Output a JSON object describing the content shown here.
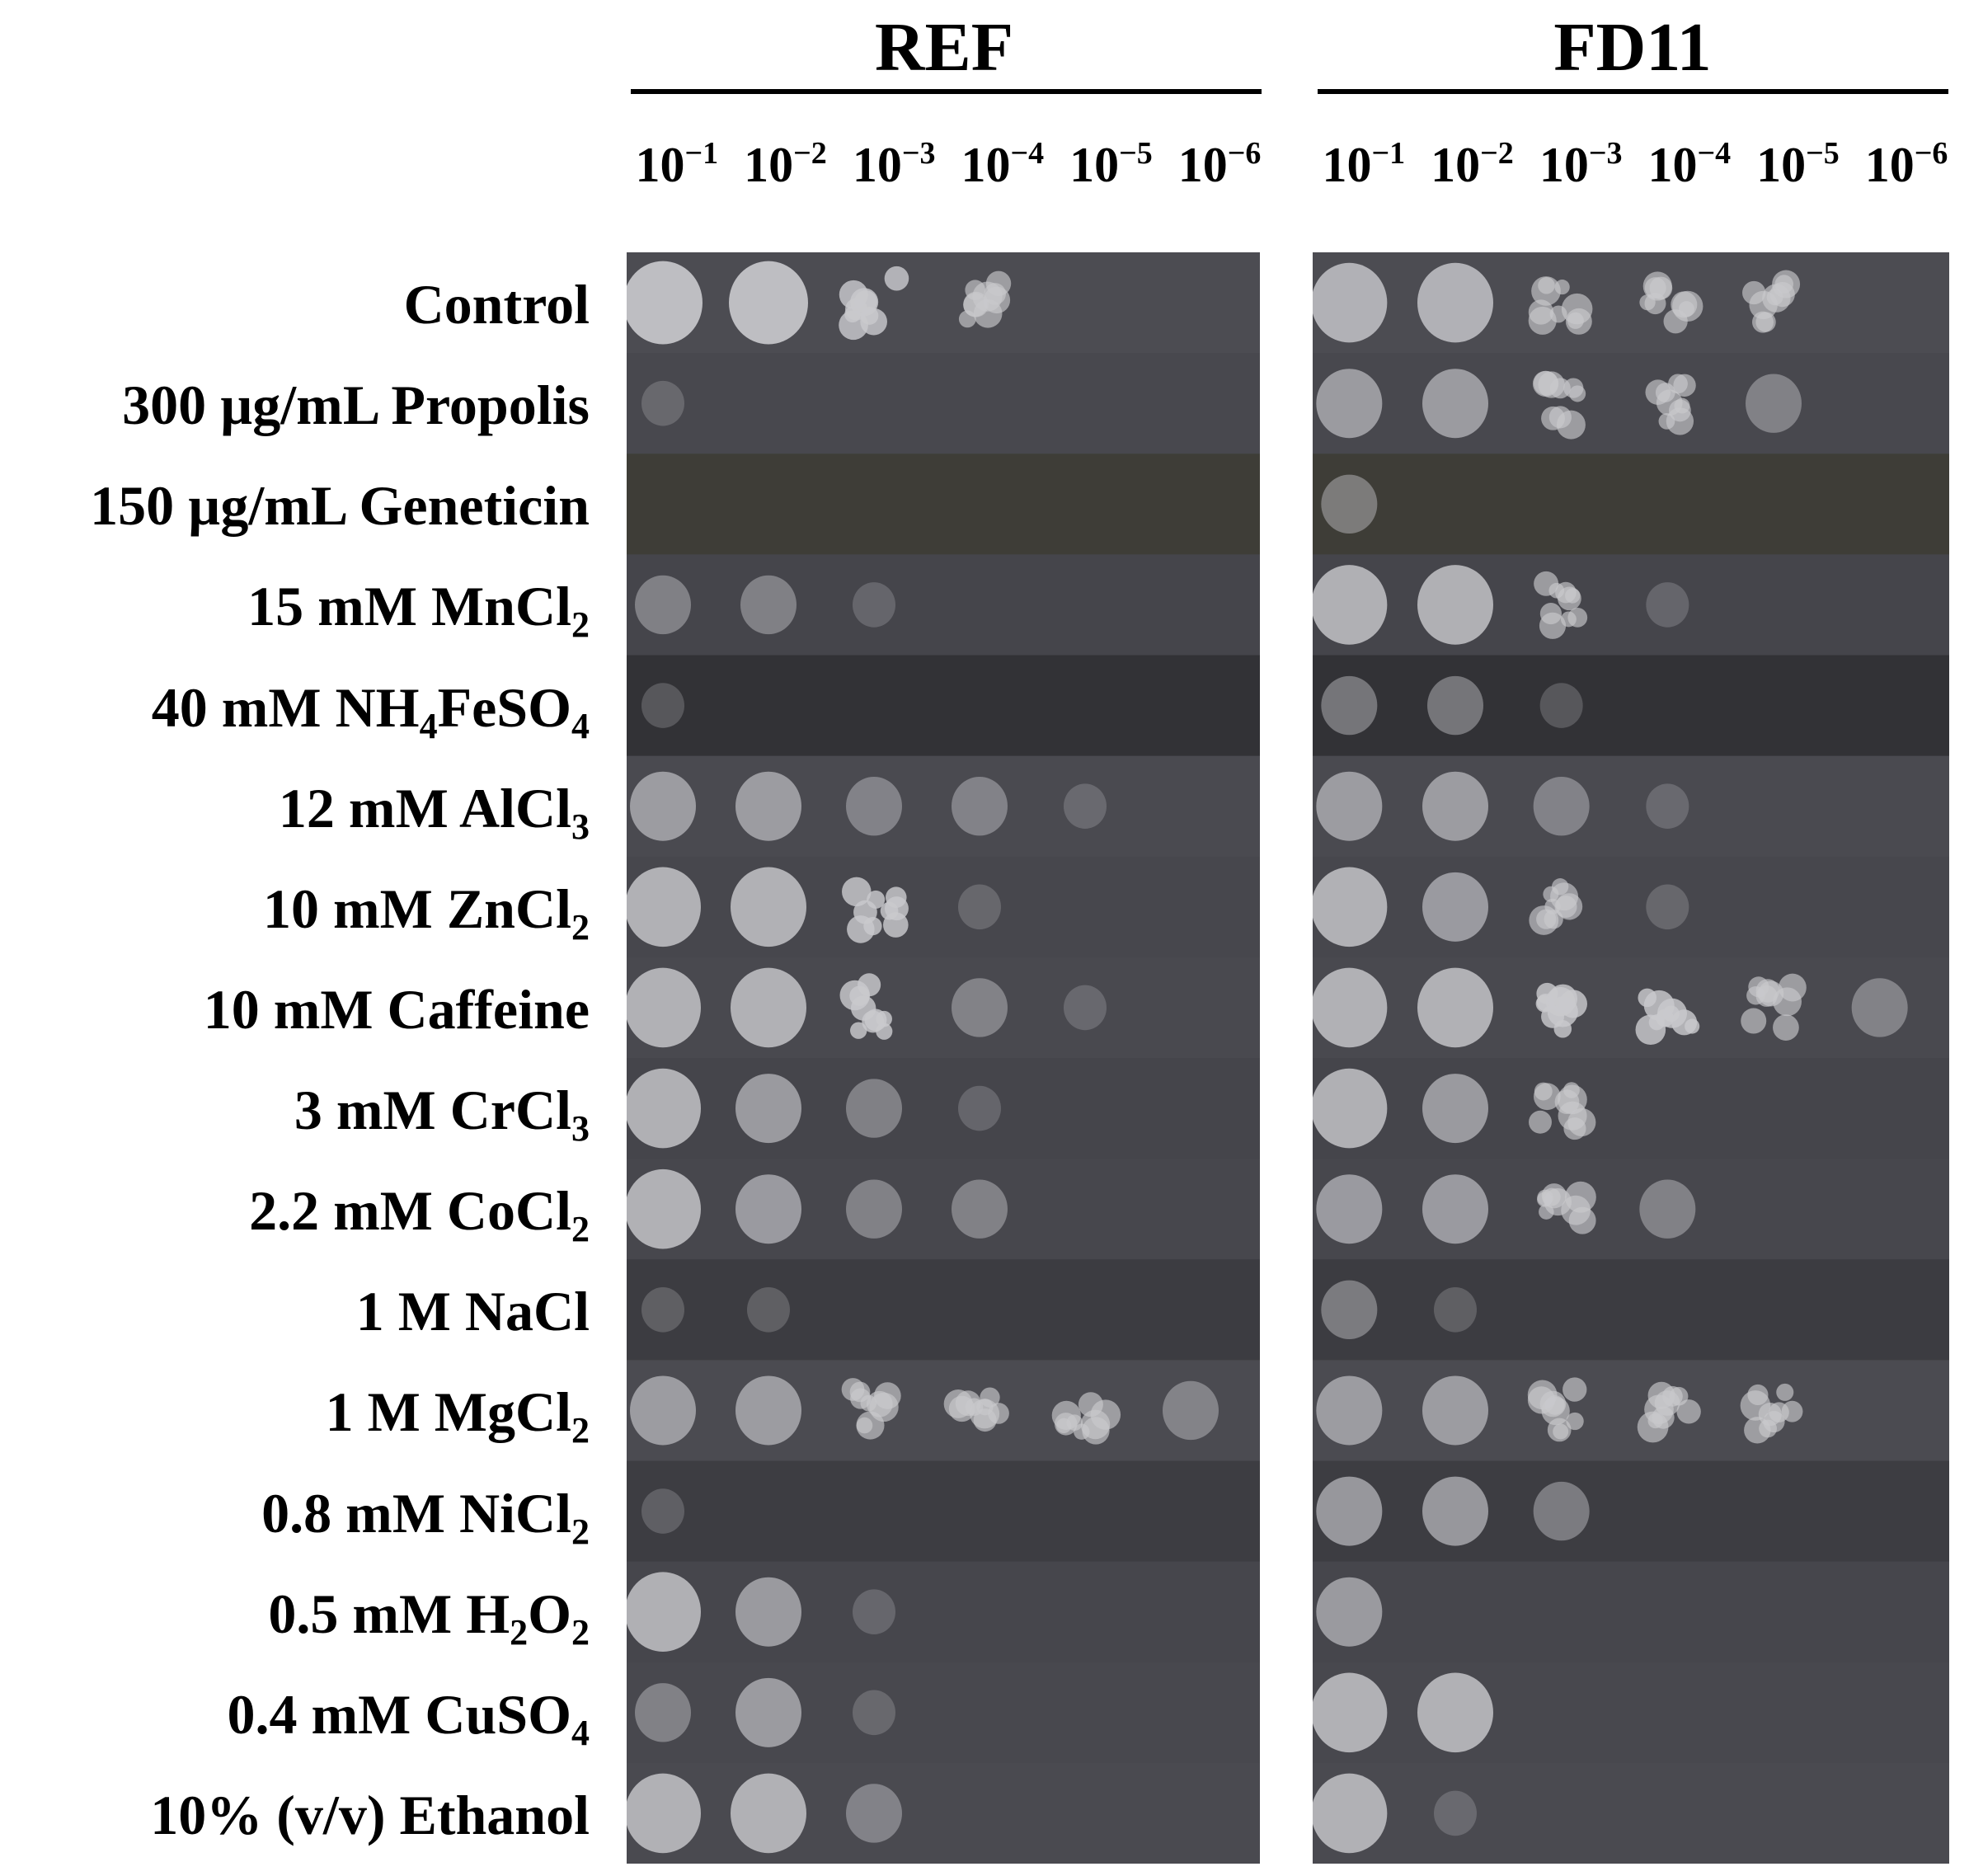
{
  "strains": [
    {
      "id": "ref",
      "name": "REF"
    },
    {
      "id": "fd11",
      "name": "FD11"
    }
  ],
  "dilutions": [
    {
      "base": "10",
      "exp": "−1"
    },
    {
      "base": "10",
      "exp": "−2"
    },
    {
      "base": "10",
      "exp": "−3"
    },
    {
      "base": "10",
      "exp": "−4"
    },
    {
      "base": "10",
      "exp": "−5"
    },
    {
      "base": "10",
      "exp": "−6"
    }
  ],
  "conditions": [
    {
      "pre": "Control",
      "sub": "",
      "post": "",
      "sub2": ""
    },
    {
      "pre": "300 µg/mL Propolis",
      "sub": "",
      "post": "",
      "sub2": ""
    },
    {
      "pre": "150 µg/mL Geneticin",
      "sub": "",
      "post": "",
      "sub2": ""
    },
    {
      "pre": "15 mM MnCl",
      "sub": "2",
      "post": "",
      "sub2": ""
    },
    {
      "pre": "40 mM NH",
      "sub": "4",
      "post": "FeSO",
      "sub2": "4"
    },
    {
      "pre": "12 mM AlCl",
      "sub": "3",
      "post": "",
      "sub2": ""
    },
    {
      "pre": "10 mM ZnCl",
      "sub": "2",
      "post": "",
      "sub2": ""
    },
    {
      "pre": "10 mM Caffeine",
      "sub": "",
      "post": "",
      "sub2": ""
    },
    {
      "pre": "3 mM CrCl",
      "sub": "3",
      "post": "",
      "sub2": ""
    },
    {
      "pre": "2.2 mM CoCl",
      "sub": "2",
      "post": "",
      "sub2": ""
    },
    {
      "pre": "1 M NaCl",
      "sub": "",
      "post": "",
      "sub2": ""
    },
    {
      "pre": "1 M MgCl",
      "sub": "2",
      "post": "",
      "sub2": ""
    },
    {
      "pre": "0.8 mM NiCl",
      "sub": "2",
      "post": "",
      "sub2": ""
    },
    {
      "pre": "0.5 mM H",
      "sub": "2",
      "post": "O",
      "sub2": "2"
    },
    {
      "pre": "0.4 mM CuSO",
      "sub": "4",
      "post": "",
      "sub2": ""
    },
    {
      "pre": "10% (v/v) Ethanol",
      "sub": "",
      "post": "",
      "sub2": ""
    }
  ],
  "growth": {
    "ref": [
      [
        5,
        5,
        4,
        3,
        0,
        0
      ],
      [
        1,
        0,
        0,
        0,
        0,
        0
      ],
      [
        0,
        0,
        0,
        0,
        0,
        0
      ],
      [
        2,
        2,
        1,
        0,
        0,
        0
      ],
      [
        1,
        0,
        0,
        0,
        0,
        0
      ],
      [
        3,
        3,
        2,
        2,
        1,
        0
      ],
      [
        4,
        4,
        4,
        1,
        0,
        0
      ],
      [
        4,
        4,
        4,
        2,
        1,
        0
      ],
      [
        4,
        3,
        2,
        1,
        0,
        0
      ],
      [
        4,
        3,
        2,
        2,
        0,
        0
      ],
      [
        1,
        1,
        0,
        0,
        0,
        0
      ],
      [
        3,
        3,
        3,
        3,
        3,
        2
      ],
      [
        1,
        0,
        0,
        0,
        0,
        0
      ],
      [
        4,
        3,
        1,
        0,
        0,
        0
      ],
      [
        2,
        3,
        1,
        0,
        0,
        0
      ],
      [
        4,
        4,
        2,
        0,
        0,
        0
      ]
    ],
    "fd11": [
      [
        4,
        4,
        3,
        3,
        3,
        0
      ],
      [
        3,
        3,
        3,
        3,
        2,
        0
      ],
      [
        2,
        0,
        0,
        0,
        0,
        0
      ],
      [
        4,
        4,
        3,
        1,
        0,
        0
      ],
      [
        2,
        2,
        1,
        0,
        0,
        0
      ],
      [
        3,
        3,
        2,
        1,
        0,
        0
      ],
      [
        4,
        3,
        3,
        1,
        0,
        0
      ],
      [
        4,
        4,
        4,
        4,
        3,
        2
      ],
      [
        4,
        3,
        3,
        0,
        0,
        0
      ],
      [
        3,
        3,
        3,
        2,
        0,
        0
      ],
      [
        2,
        1,
        0,
        0,
        0,
        0
      ],
      [
        3,
        3,
        3,
        3,
        3,
        0
      ],
      [
        3,
        3,
        2,
        0,
        0,
        0
      ],
      [
        3,
        0,
        0,
        0,
        0,
        0
      ],
      [
        4,
        4,
        0,
        0,
        0,
        0
      ],
      [
        4,
        1,
        0,
        0,
        0,
        0
      ]
    ]
  }
}
